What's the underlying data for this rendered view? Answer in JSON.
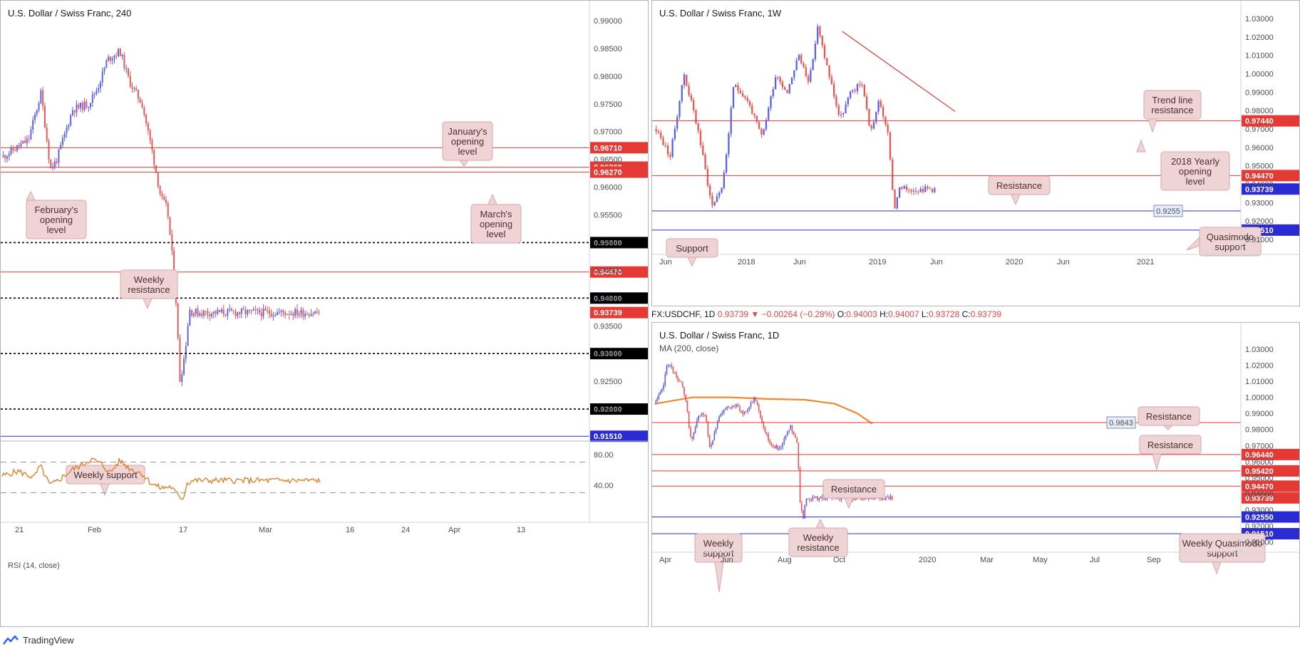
{
  "app": {
    "brand": "TradingView"
  },
  "header_bar": {
    "symbol": "FX:USDCHF, 1D",
    "last": "0.93739",
    "change": "▼ −0.00264 (−0.28%)",
    "o_label": "O:",
    "o_val": "0.94003",
    "h_label": "H:",
    "h_val": "0.94007",
    "l_label": "L:",
    "l_val": "0.93728",
    "c_label": "C:",
    "c_val": "0.93739"
  },
  "colors": {
    "bull": "#5b5ff0",
    "bear": "#ef5350",
    "red_line": "#e53935",
    "blue_line": "#2b2bd6",
    "ma": "#f0892e",
    "rsi": "#e07a20",
    "note_bg": "#efd4d6",
    "note_border": "#d8a6aa"
  },
  "chart_data": [
    {
      "id": "h4",
      "type": "candlestick",
      "title": "U.S. Dollar / Swiss Franc, 240",
      "ylim": [
        0.915,
        0.99
      ],
      "y_ticks": [
        "0.99000",
        "0.98500",
        "0.98000",
        "0.97500",
        "0.97000",
        "0.96500",
        "0.96000",
        "0.95500",
        "0.95000",
        "0.94500",
        "0.94000",
        "0.93500",
        "0.93000",
        "0.92500",
        "0.92000"
      ],
      "x_ticks": [
        "21",
        "Feb",
        "17",
        "Mar",
        "16",
        "24",
        "Apr",
        "13"
      ],
      "price_path": [
        [
          0,
          0.9655
        ],
        [
          0.04,
          0.967
        ],
        [
          0.08,
          0.9685
        ],
        [
          0.12,
          0.977
        ],
        [
          0.15,
          0.9632
        ],
        [
          0.17,
          0.965
        ],
        [
          0.22,
          0.974
        ],
        [
          0.27,
          0.975
        ],
        [
          0.3,
          0.978
        ],
        [
          0.33,
          0.983
        ],
        [
          0.37,
          0.9845
        ],
        [
          0.4,
          0.979
        ],
        [
          0.44,
          0.975
        ],
        [
          0.47,
          0.967
        ],
        [
          0.5,
          0.958
        ],
        [
          0.52,
          0.956
        ],
        [
          0.545,
          0.942
        ],
        [
          0.56,
          0.925
        ],
        [
          0.575,
          0.93
        ],
        [
          0.59,
          0.938
        ],
        [
          0.6,
          0.9374
        ]
      ],
      "levels": [
        {
          "value": 0.9671,
          "label": "0.96710",
          "kind": "red-solid"
        },
        {
          "value": 0.9636,
          "label": "0.96360",
          "kind": "red-solid"
        },
        {
          "value": 0.9627,
          "label": "0.96270",
          "kind": "red-solid"
        },
        {
          "value": 0.95,
          "label": "0.95000",
          "kind": "black-dotted"
        },
        {
          "value": 0.9447,
          "label": "0.94470",
          "kind": "red-solid"
        },
        {
          "value": 0.94,
          "label": "0.94000",
          "kind": "black-dotted"
        },
        {
          "value": 0.93739,
          "label": "0.93739",
          "kind": "red-tag"
        },
        {
          "value": 0.93,
          "label": "0.93000",
          "kind": "black-dotted"
        },
        {
          "value": 0.92,
          "label": "0.92000",
          "kind": "black-dotted"
        },
        {
          "value": 0.9151,
          "label": "0.91510",
          "kind": "blue-solid"
        }
      ],
      "annotations": [
        {
          "text": [
            "January's",
            "opening",
            "level"
          ]
        },
        {
          "text": [
            "February's",
            "opening",
            "level"
          ]
        },
        {
          "text": [
            "March's",
            "opening",
            "level"
          ]
        },
        {
          "text": [
            "Weekly",
            "resistance"
          ]
        },
        {
          "text": [
            "Weekly support"
          ]
        }
      ],
      "rsi": {
        "label": "RSI (14, close)",
        "y_ticks": [
          "80.00",
          "40.00"
        ],
        "levels": [
          70,
          30
        ],
        "path": [
          [
            0,
            52
          ],
          [
            0.05,
            58
          ],
          [
            0.1,
            50
          ],
          [
            0.12,
            65
          ],
          [
            0.15,
            40
          ],
          [
            0.17,
            44
          ],
          [
            0.22,
            60
          ],
          [
            0.25,
            66
          ],
          [
            0.28,
            74
          ],
          [
            0.31,
            68
          ],
          [
            0.34,
            56
          ],
          [
            0.37,
            72
          ],
          [
            0.4,
            62
          ],
          [
            0.44,
            55
          ],
          [
            0.47,
            42
          ],
          [
            0.5,
            36
          ],
          [
            0.53,
            38
          ],
          [
            0.55,
            28
          ],
          [
            0.57,
            22
          ],
          [
            0.58,
            42
          ],
          [
            0.6,
            46
          ]
        ]
      }
    },
    {
      "id": "w1",
      "type": "candlestick",
      "title": "U.S. Dollar / Swiss Franc, 1W",
      "ylim": [
        0.905,
        1.035
      ],
      "y_ticks": [
        "1.03000",
        "1.02000",
        "1.01000",
        "1.00000",
        "0.99000",
        "0.98000",
        "0.97000",
        "0.96000",
        "0.95000",
        "0.94000",
        "0.93000",
        "0.92000",
        "0.91000"
      ],
      "x_ticks": [
        "Jun",
        "2018",
        "Jun",
        "2019",
        "Jun",
        "2020",
        "Jun",
        "2021"
      ],
      "price_path": [
        [
          0,
          0.97
        ],
        [
          0.05,
          0.955
        ],
        [
          0.1,
          1.0
        ],
        [
          0.15,
          0.97
        ],
        [
          0.2,
          0.928
        ],
        [
          0.24,
          0.94
        ],
        [
          0.28,
          0.995
        ],
        [
          0.33,
          0.985
        ],
        [
          0.38,
          0.965
        ],
        [
          0.43,
          1.0
        ],
        [
          0.47,
          0.99
        ],
        [
          0.51,
          1.01
        ],
        [
          0.55,
          0.996
        ],
        [
          0.58,
          1.025
        ],
        [
          0.62,
          1.0
        ],
        [
          0.66,
          0.975
        ],
        [
          0.7,
          0.99
        ],
        [
          0.74,
          0.995
        ],
        [
          0.77,
          0.968
        ],
        [
          0.8,
          0.985
        ],
        [
          0.83,
          0.97
        ],
        [
          0.856,
          0.926
        ],
        [
          0.87,
          0.9374
        ]
      ],
      "levels": [
        {
          "value": 0.9744,
          "label": "0.97440",
          "kind": "red-solid"
        },
        {
          "value": 0.9447,
          "label": "0.94470",
          "kind": "red-solid"
        },
        {
          "value": 0.93739,
          "label": "0.93739",
          "kind": "blue-tag"
        },
        {
          "value": 0.9255,
          "label": "0.9255",
          "kind": "blue-solid-inline"
        },
        {
          "value": 0.9151,
          "label": "0.91510",
          "kind": "blue-solid"
        }
      ],
      "trendline": {
        "from": [
          0.58,
          1.023
        ],
        "to": [
          0.93,
          0.9795
        ]
      },
      "annotations": [
        {
          "text": [
            "Trend line",
            "resistance"
          ]
        },
        {
          "text": [
            "2018 Yearly",
            "opening",
            "level"
          ]
        },
        {
          "text": [
            "Resistance"
          ]
        },
        {
          "text": [
            "Quasimodo",
            "support"
          ]
        },
        {
          "text": [
            "Support"
          ]
        }
      ]
    },
    {
      "id": "d1",
      "type": "candlestick",
      "title": "U.S. Dollar / Swiss Franc, 1D",
      "subtitle": "MA (200, close)",
      "ylim": [
        0.908,
        1.034
      ],
      "y_ticks": [
        "1.03000",
        "1.02000",
        "1.01000",
        "1.00000",
        "0.99000",
        "0.98000",
        "0.97000",
        "0.96000",
        "0.95000",
        "0.94000",
        "0.93000",
        "0.92000",
        "0.91000"
      ],
      "x_ticks": [
        "Apr",
        "Jun",
        "Aug",
        "Oct",
        "2020",
        "Mar",
        "May",
        "Jul",
        "Sep"
      ],
      "price_path": [
        [
          0,
          0.997
        ],
        [
          0.03,
          1.005
        ],
        [
          0.05,
          1.022
        ],
        [
          0.08,
          1.015
        ],
        [
          0.11,
          1.008
        ],
        [
          0.13,
          0.995
        ],
        [
          0.15,
          0.972
        ],
        [
          0.18,
          0.988
        ],
        [
          0.21,
          0.99
        ],
        [
          0.23,
          0.968
        ],
        [
          0.26,
          0.985
        ],
        [
          0.29,
          0.992
        ],
        [
          0.33,
          0.996
        ],
        [
          0.37,
          0.99
        ],
        [
          0.4,
          0.995
        ],
        [
          0.42,
          1.0
        ],
        [
          0.45,
          0.985
        ],
        [
          0.48,
          0.972
        ],
        [
          0.52,
          0.968
        ],
        [
          0.55,
          0.975
        ],
        [
          0.57,
          0.982
        ],
        [
          0.6,
          0.97
        ],
        [
          0.61,
          0.935
        ],
        [
          0.625,
          0.925
        ],
        [
          0.635,
          0.9374
        ]
      ],
      "ma": [
        [
          0,
          0.996
        ],
        [
          0.1,
          1.0
        ],
        [
          0.2,
          1.0
        ],
        [
          0.3,
          0.999
        ],
        [
          0.4,
          0.9985
        ],
        [
          0.48,
          0.996
        ],
        [
          0.54,
          0.99
        ],
        [
          0.58,
          0.9835
        ]
      ],
      "levels": [
        {
          "value": 0.9843,
          "label": "0.9843",
          "kind": "red-solid-inline"
        },
        {
          "value": 0.9644,
          "label": "0.96440",
          "kind": "red-solid"
        },
        {
          "value": 0.9542,
          "label": "0.95420",
          "kind": "red-solid"
        },
        {
          "value": 0.9447,
          "label": "0.94470",
          "kind": "red-solid"
        },
        {
          "value": 0.93739,
          "label": "0.93739",
          "kind": "red-tag"
        },
        {
          "value": 0.9255,
          "label": "0.92550",
          "kind": "blue-solid"
        },
        {
          "value": 0.9151,
          "label": "0.91510",
          "kind": "blue-solid"
        }
      ],
      "annotations": [
        {
          "text": [
            "Resistance"
          ]
        },
        {
          "text": [
            "Resistance"
          ]
        },
        {
          "text": [
            "Resistance"
          ]
        },
        {
          "text": [
            "Weekly",
            "resistance"
          ]
        },
        {
          "text": [
            "Weekly",
            "support"
          ]
        },
        {
          "text": [
            "Weekly Quasimodo",
            "support"
          ]
        }
      ]
    }
  ]
}
